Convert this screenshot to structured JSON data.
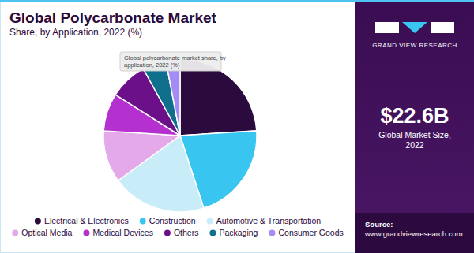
{
  "chart_data": {
    "type": "pie",
    "title": "Global Polycarbonate Market",
    "subtitle": "Share, by Application, 2022 (%)",
    "categories": [
      "Electrical & Electronics",
      "Construction",
      "Automotive & Transportation",
      "Optical Media",
      "Medical Devices",
      "Others",
      "Packaging",
      "Consumer Goods"
    ],
    "values": [
      24,
      21,
      20,
      11,
      8,
      8,
      5,
      3
    ],
    "colors": [
      "#2b0a3d",
      "#38c6f0",
      "#c9ecf9",
      "#e3a9e8",
      "#b431d0",
      "#6b1089",
      "#0f6f8d",
      "#a58cf2"
    ],
    "legend": "bottom",
    "data_labels": false,
    "annotations": [
      "Global polycarbonate market share, by",
      "application, 2022 (%)",
      "GRAND VIEW RESEARCH",
      "$22.6B",
      "Global Market Size,",
      "2022",
      "Source:",
      "www.grandviewresearch.com"
    ]
  }
}
